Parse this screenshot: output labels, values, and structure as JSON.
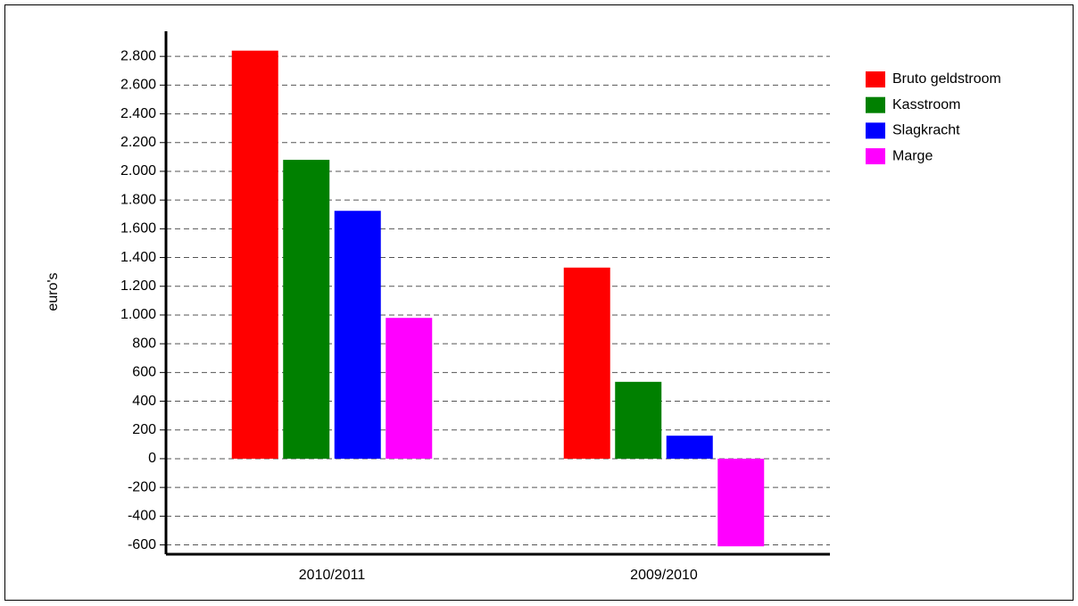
{
  "chart_data": {
    "type": "bar",
    "ylabel": "euro's",
    "categories": [
      "2010/2011",
      "2009/2010"
    ],
    "series": [
      {
        "name": "Bruto geldstroom",
        "color": "#ff0000",
        "values": [
          2840,
          1330
        ]
      },
      {
        "name": "Kasstroom",
        "color": "#008000",
        "values": [
          2080,
          535
        ]
      },
      {
        "name": "Slagkracht",
        "color": "#0000ff",
        "values": [
          1725,
          160
        ]
      },
      {
        "name": "Marge",
        "color": "#ff00ff",
        "values": [
          980,
          -610
        ]
      }
    ],
    "ylim": [
      -665,
      2975
    ],
    "yticks": [
      -600,
      -400,
      -200,
      0,
      200,
      400,
      600,
      800,
      {
        "value": 1000,
        "label": "1.000"
      },
      {
        "value": 1200,
        "label": "1.200"
      },
      {
        "value": 1400,
        "label": "1.400"
      },
      {
        "value": 1600,
        "label": "1.600"
      },
      {
        "value": 1800,
        "label": "1.800"
      },
      {
        "value": 2000,
        "label": "2.000"
      },
      {
        "value": 2200,
        "label": "2.200"
      },
      {
        "value": 2400,
        "label": "2.400"
      },
      {
        "value": 2600,
        "label": "2.600"
      },
      {
        "value": 2800,
        "label": "2.800"
      }
    ],
    "grid": true,
    "legend": "top-right"
  }
}
